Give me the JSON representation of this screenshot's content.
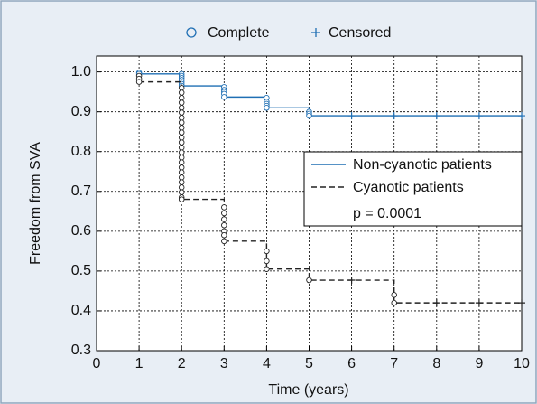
{
  "chart_data": {
    "type": "survival",
    "marker_legend": {
      "complete": "Complete",
      "censored": "Censored"
    },
    "xlabel": "Time (years)",
    "ylabel": "Freedom from SVA",
    "annotation": "p = 0.0001",
    "xlim": [
      0,
      10
    ],
    "ylim": [
      0.3,
      1.04
    ],
    "xticks": [
      0,
      1,
      2,
      3,
      4,
      5,
      6,
      7,
      8,
      9,
      10
    ],
    "yticks": [
      0.3,
      0.4,
      0.5,
      0.6,
      0.7,
      0.8,
      0.9,
      {
        "value": 1,
        "label": "1.0"
      }
    ],
    "grid": true,
    "series": [
      {
        "name": "Non-cyanotic patients",
        "color": "#1f6fb4",
        "dash": false,
        "x": [
          1,
          2,
          2,
          3,
          3,
          4,
          4,
          5,
          5,
          10
        ],
        "values": [
          0.995,
          0.995,
          0.965,
          0.965,
          0.937,
          0.937,
          0.91,
          0.91,
          0.89,
          0.89
        ],
        "complete": {
          "x": [
            1,
            1,
            2,
            2,
            2,
            2,
            2,
            2,
            2,
            3,
            3,
            3,
            3,
            3,
            4,
            4,
            4,
            4,
            4,
            5,
            5,
            5
          ],
          "y": [
            0.998,
            0.995,
            0.995,
            0.99,
            0.985,
            0.98,
            0.975,
            0.97,
            0.965,
            0.962,
            0.955,
            0.95,
            0.945,
            0.937,
            0.935,
            0.925,
            0.92,
            0.915,
            0.91,
            0.9,
            0.895,
            0.89
          ]
        },
        "censored": {
          "x": [
            6,
            7,
            8,
            9,
            10
          ],
          "y": [
            0.89,
            0.89,
            0.89,
            0.89,
            0.89
          ]
        }
      },
      {
        "name": "Cyanotic patients",
        "color": "#222222",
        "dash": true,
        "x": [
          1,
          2,
          2,
          3,
          3,
          4,
          4,
          5,
          5,
          7,
          7,
          10
        ],
        "values": [
          0.975,
          0.975,
          0.68,
          0.68,
          0.575,
          0.575,
          0.505,
          0.505,
          0.477,
          0.477,
          0.42,
          0.42
        ],
        "complete": {
          "x": [
            1,
            1,
            1,
            2,
            2,
            2,
            2,
            2,
            2,
            2,
            2,
            2,
            2,
            2,
            2,
            2,
            2,
            2,
            2,
            2,
            2,
            2,
            2,
            2,
            2,
            2,
            2,
            3,
            3,
            3,
            3,
            3,
            3,
            3,
            4,
            4,
            4,
            5,
            7,
            7
          ],
          "y": [
            0.99,
            0.983,
            0.975,
            0.96,
            0.948,
            0.935,
            0.923,
            0.91,
            0.898,
            0.885,
            0.873,
            0.86,
            0.848,
            0.835,
            0.823,
            0.81,
            0.798,
            0.785,
            0.773,
            0.76,
            0.748,
            0.735,
            0.723,
            0.71,
            0.698,
            0.685,
            0.68,
            0.66,
            0.645,
            0.63,
            0.615,
            0.6,
            0.59,
            0.575,
            0.55,
            0.525,
            0.505,
            0.477,
            0.44,
            0.42
          ]
        },
        "censored": {
          "x": [
            6,
            8,
            9,
            10
          ],
          "y": [
            0.477,
            0.42,
            0.42,
            0.42
          ]
        }
      }
    ]
  }
}
